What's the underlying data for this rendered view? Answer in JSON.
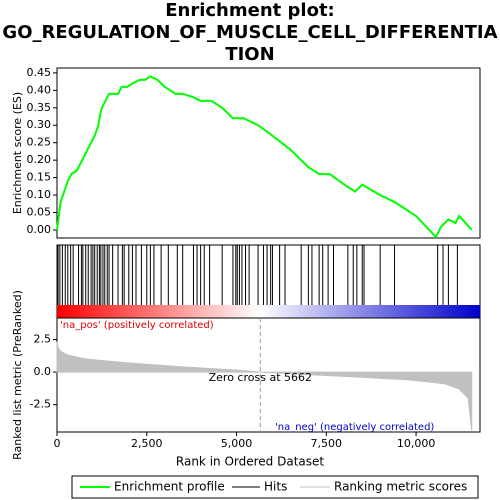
{
  "chart_data": [
    {
      "type": "line",
      "title": "Enrichment plot: GO_REGULATION_OF_MUSCLE_CELL_DIFFERENTIATION",
      "ylabel": "Enrichment score (ES)",
      "xlim": [
        0,
        11780
      ],
      "ylim": [
        -0.023,
        0.464
      ],
      "yticks": [
        {
          "value": 0,
          "label": "0.00"
        },
        {
          "value": 0.05,
          "label": "0.05"
        },
        {
          "value": 0.1,
          "label": "0.10"
        },
        {
          "value": 0.15,
          "label": "0.15"
        },
        {
          "value": 0.2,
          "label": "0.20"
        },
        {
          "value": 0.25,
          "label": "0.25"
        },
        {
          "value": 0.3,
          "label": "0.30"
        },
        {
          "value": 0.35,
          "label": "0.35"
        },
        {
          "value": 0.4,
          "label": "0.40"
        },
        {
          "value": 0.45,
          "label": "0.45"
        }
      ],
      "series": [
        {
          "name": "Enrichment profile",
          "color": "#00ff00",
          "x": [
            0,
            50,
            100,
            200,
            300,
            400,
            550,
            650,
            750,
            850,
            950,
            1050,
            1150,
            1200,
            1250,
            1350,
            1450,
            1600,
            1700,
            1800,
            1950,
            2100,
            2300,
            2450,
            2600,
            2800,
            3000,
            3300,
            3500,
            3800,
            4000,
            4300,
            4600,
            4900,
            5200,
            5600,
            6000,
            6500,
            7000,
            7300,
            7600,
            8000,
            8300,
            8500,
            9000,
            9400,
            10000,
            10550,
            10700,
            10900,
            11100,
            11200,
            11550
          ],
          "values": [
            0,
            0.04,
            0.08,
            0.11,
            0.14,
            0.16,
            0.17,
            0.19,
            0.21,
            0.23,
            0.25,
            0.27,
            0.3,
            0.33,
            0.35,
            0.37,
            0.39,
            0.39,
            0.39,
            0.41,
            0.41,
            0.42,
            0.43,
            0.43,
            0.44,
            0.43,
            0.41,
            0.39,
            0.39,
            0.38,
            0.37,
            0.37,
            0.35,
            0.32,
            0.32,
            0.3,
            0.27,
            0.23,
            0.18,
            0.16,
            0.16,
            0.13,
            0.11,
            0.13,
            0.1,
            0.08,
            0.04,
            -0.02,
            0.01,
            0.03,
            0.02,
            0.04,
            0
          ]
        }
      ]
    },
    {
      "type": "hits",
      "xlim": [
        0,
        11780
      ],
      "series": [
        {
          "name": "Hits",
          "color": "#000000",
          "x": [
            30,
            80,
            150,
            230,
            300,
            380,
            450,
            600,
            680,
            720,
            800,
            870,
            950,
            1000,
            1050,
            1120,
            1180,
            1220,
            1280,
            1330,
            1400,
            1450,
            1550,
            1700,
            1820,
            1870,
            2000,
            2100,
            2200,
            2350,
            2500,
            2600,
            2700,
            2900,
            3100,
            3350,
            3500,
            3800,
            3900,
            4000,
            4100,
            4250,
            4600,
            4900,
            4980,
            5020,
            5080,
            5150,
            5250,
            5350,
            5600,
            5750,
            5850,
            5950,
            6000,
            6200,
            6350,
            6800,
            7000,
            7100,
            7300,
            7400,
            7550,
            7700,
            8100,
            8250,
            8350,
            8500,
            8550,
            9000,
            9400,
            10600,
            10750,
            10900,
            11150
          ]
        }
      ]
    },
    {
      "type": "area",
      "xlabel": "Rank in Ordered Dataset",
      "ylabel": "Ranked list metric (PreRanked)",
      "xlim": [
        0,
        11780
      ],
      "ylim": [
        -4.6,
        4.15
      ],
      "xticks": [
        0,
        {
          "value": 2500,
          "label": "2,500"
        },
        {
          "value": 5000,
          "label": "5,000"
        },
        {
          "value": 7500,
          "label": "7,500"
        },
        {
          "value": 10000,
          "label": "10,000"
        }
      ],
      "yticks": [
        {
          "value": 2.5,
          "label": "2.5"
        },
        {
          "value": 0,
          "label": "0.0"
        },
        {
          "value": -2.5,
          "label": "-2.5"
        }
      ],
      "zero_cross": 5662,
      "zero_cross_label": "Zero cross at 5662",
      "pos_label": "'na_pos' (positively correlated)",
      "neg_label": "'na_neg' (negatively correlated)",
      "series": [
        {
          "name": "Ranking metric scores",
          "color": "#c0c0c0",
          "x": [
            0,
            30,
            100,
            300,
            800,
            2000,
            3500,
            5000,
            5662,
            7000,
            8500,
            9800,
            10800,
            11200,
            11450,
            11550
          ],
          "values": [
            2.3,
            1.9,
            1.6,
            1.3,
            1.0,
            0.7,
            0.4,
            0.15,
            0,
            -0.2,
            -0.4,
            -0.6,
            -0.9,
            -1.3,
            -2.0,
            -4.5
          ]
        }
      ]
    }
  ]
}
